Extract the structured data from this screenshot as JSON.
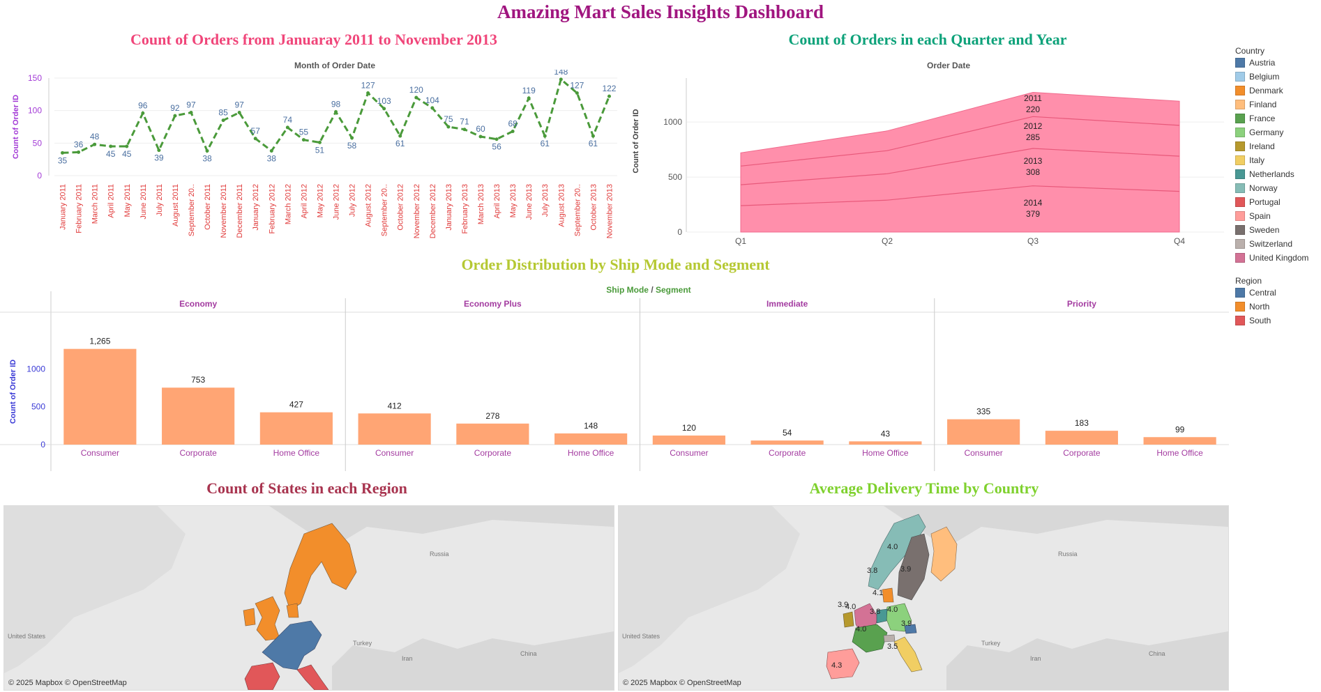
{
  "dashboard": {
    "title": "Amazing Mart Sales Insights Dashboard"
  },
  "line_panel": {
    "title": "Count of Orders from Januaray 2011 to November 2013",
    "subtitle": "Month of Order Date",
    "ylabel": "Count of Order ID"
  },
  "area_panel": {
    "title": "Count of Orders in each Quarter and Year",
    "subtitle": "Order Date",
    "ylabel": "Count of Order ID"
  },
  "bar_panel": {
    "title": "Order Distribution by Ship Mode and Segment",
    "header_ship_mode": "Ship Mode",
    "header_sep": "/",
    "header_segment": "Segment",
    "ylabel": "Count of Order ID"
  },
  "map_left": {
    "title": "Count of States in each Region",
    "credit": "© 2025 Mapbox © OpenStreetMap",
    "labels": [
      "Russia",
      "United States",
      "Turkey",
      "Iran",
      "China"
    ]
  },
  "map_right": {
    "title": "Average Delivery Time by Country",
    "credit": "© 2025 Mapbox © OpenStreetMap",
    "labels": [
      "Russia",
      "United States",
      "Turkey",
      "Iran",
      "China"
    ],
    "values": [
      "4.0",
      "3.8",
      "3.9",
      "4.1",
      "3.9",
      "4.0",
      "3.8",
      "4.0",
      "4.0",
      "3.9",
      "3.5",
      "4.3"
    ]
  },
  "legend_country": {
    "title": "Country",
    "items": [
      {
        "label": "Austria",
        "color": "#4e79a7"
      },
      {
        "label": "Belgium",
        "color": "#a0cbe8"
      },
      {
        "label": "Denmark",
        "color": "#f28e2b"
      },
      {
        "label": "Finland",
        "color": "#ffbe7d"
      },
      {
        "label": "France",
        "color": "#59a14f"
      },
      {
        "label": "Germany",
        "color": "#8cd17d"
      },
      {
        "label": "Ireland",
        "color": "#b6992d"
      },
      {
        "label": "Italy",
        "color": "#f1ce63"
      },
      {
        "label": "Netherlands",
        "color": "#499894"
      },
      {
        "label": "Norway",
        "color": "#86bcb6"
      },
      {
        "label": "Portugal",
        "color": "#e15759"
      },
      {
        "label": "Spain",
        "color": "#ff9d9a"
      },
      {
        "label": "Sweden",
        "color": "#79706e"
      },
      {
        "label": "Switzerland",
        "color": "#bab0ac"
      },
      {
        "label": "United Kingdom",
        "color": "#d37295"
      }
    ]
  },
  "legend_region": {
    "title": "Region",
    "items": [
      {
        "label": "Central",
        "color": "#4e79a7"
      },
      {
        "label": "North",
        "color": "#f28e2b"
      },
      {
        "label": "South",
        "color": "#e15759"
      }
    ]
  },
  "colors": {
    "title_main": "#a0157f",
    "line_title": "#f0467a",
    "area_title": "#0ea27a",
    "bar_title": "#b5c832",
    "map_left_title": "#a8344f",
    "map_right_title": "#7fd12e",
    "line": "#4a9a3a",
    "area": "#ff8fab",
    "bar": "#ffa574"
  },
  "chart_data": [
    {
      "type": "line",
      "title": "Count of Orders from Januaray 2011 to November 2013",
      "xlabel": "Month of Order Date",
      "ylabel": "Count of Order ID",
      "ylim": [
        0,
        150
      ],
      "yticks": [
        "0",
        "50",
        "100",
        "150"
      ],
      "x": [
        "January 2011",
        "February 2011",
        "March 2011",
        "April 2011",
        "May 2011",
        "June 2011",
        "July 2011",
        "August 2011",
        "September 20..",
        "October 2011",
        "November 2011",
        "December 2011",
        "January 2012",
        "February 2012",
        "March 2012",
        "April 2012",
        "May 2012",
        "June 2012",
        "July 2012",
        "August 2012",
        "September 20..",
        "October 2012",
        "November 2012",
        "December 2012",
        "January 2013",
        "February 2013",
        "March 2013",
        "April 2013",
        "May 2013",
        "June 2013",
        "July 2013",
        "August 2013",
        "September 20..",
        "October 2013",
        "November 2013"
      ],
      "values": [
        35,
        36,
        48,
        45,
        45,
        96,
        39,
        92,
        97,
        38,
        85,
        97,
        57,
        38,
        74,
        55,
        51,
        98,
        58,
        127,
        103,
        61,
        120,
        104,
        75,
        71,
        60,
        56,
        68,
        119,
        61,
        148,
        127,
        61,
        122
      ]
    },
    {
      "type": "area",
      "title": "Count of Orders in each Quarter and Year",
      "xlabel": "Order Date",
      "ylabel": "Count of Order ID",
      "categories": [
        "Q1",
        "Q2",
        "Q3",
        "Q4"
      ],
      "yticks": [
        "0",
        "500",
        "1000"
      ],
      "ylim": [
        0,
        1400
      ],
      "stack_totals": [
        {
          "name": "2014",
          "values": [
            240,
            290,
            420,
            370
          ]
        },
        {
          "name": "2013",
          "values": [
            430,
            530,
            760,
            690
          ]
        },
        {
          "name": "2012",
          "values": [
            600,
            740,
            1050,
            970
          ]
        },
        {
          "name": "2011",
          "values": [
            720,
            920,
            1270,
            1190
          ]
        }
      ],
      "q3_labels": [
        {
          "year": "2011",
          "value": "220"
        },
        {
          "year": "2012",
          "value": "285"
        },
        {
          "year": "2013",
          "value": "308"
        },
        {
          "year": "2014",
          "value": "379"
        }
      ]
    },
    {
      "type": "bar",
      "title": "Order Distribution by Ship Mode and Segment",
      "ylabel": "Count of Order ID",
      "ylim": [
        0,
        1400
      ],
      "yticks": [
        "0",
        "500",
        "1000"
      ],
      "groups": [
        {
          "name": "Economy",
          "categories": [
            "Consumer",
            "Corporate",
            "Home Office"
          ],
          "values": [
            1265,
            753,
            427
          ],
          "labels": [
            "1,265",
            "753",
            "427"
          ]
        },
        {
          "name": "Economy Plus",
          "categories": [
            "Consumer",
            "Corporate",
            "Home Office"
          ],
          "values": [
            412,
            278,
            148
          ],
          "labels": [
            "412",
            "278",
            "148"
          ]
        },
        {
          "name": "Immediate",
          "categories": [
            "Consumer",
            "Corporate",
            "Home Office"
          ],
          "values": [
            120,
            54,
            43
          ],
          "labels": [
            "120",
            "54",
            "43"
          ]
        },
        {
          "name": "Priority",
          "categories": [
            "Consumer",
            "Corporate",
            "Home Office"
          ],
          "values": [
            335,
            183,
            99
          ],
          "labels": [
            "335",
            "183",
            "99"
          ]
        }
      ]
    }
  ]
}
